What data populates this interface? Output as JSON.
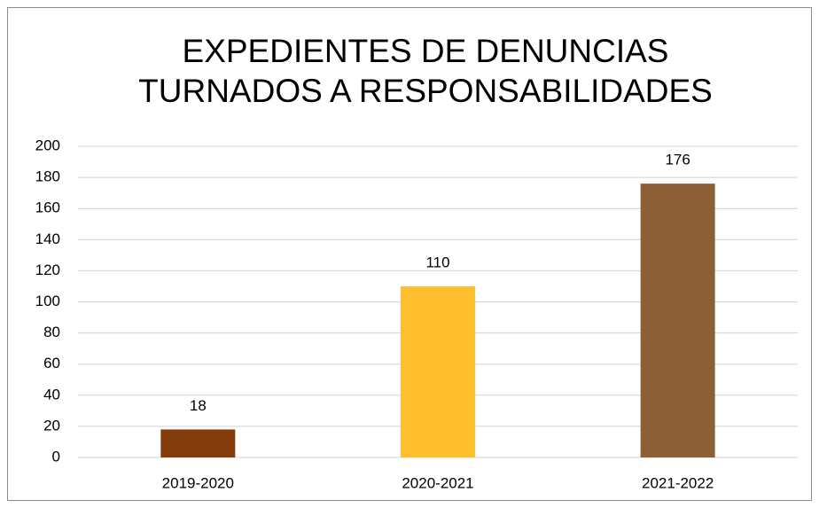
{
  "chart_data": {
    "type": "bar",
    "title": [
      "EXPEDIENTES DE DENUNCIAS",
      "TURNADOS A RESPONSABILIDADES"
    ],
    "categories": [
      "2019-2020",
      "2020-2021",
      "2021-2022"
    ],
    "values": [
      18,
      110,
      176
    ],
    "colors": [
      "#843c0c",
      "#fdbf2d",
      "#8c5f37"
    ],
    "ylim": [
      0,
      200
    ],
    "yticks": [
      0,
      20,
      40,
      60,
      80,
      100,
      120,
      140,
      160,
      180,
      200
    ],
    "grid": true
  }
}
